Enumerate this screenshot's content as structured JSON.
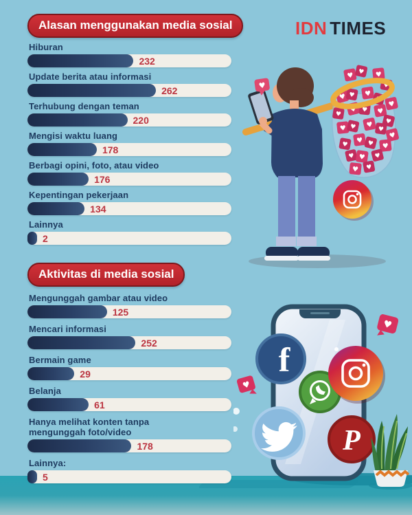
{
  "logo": {
    "idn": "IDN",
    "times": "TIMES"
  },
  "chart_data": [
    {
      "type": "bar",
      "orientation": "horizontal",
      "title": "Alasan menggunakan media sosial",
      "categories": [
        "Hiburan",
        "Update berita atau informasi",
        "Terhubung dengan teman",
        "Mengisi waktu luang",
        "Berbagi opini, foto, atau video",
        "Kepentingan pekerjaan",
        "Lainnya"
      ],
      "values": [
        232,
        262,
        220,
        178,
        176,
        134,
        2
      ],
      "fill_pct": [
        52,
        63,
        49,
        34,
        30,
        28,
        4.7
      ]
    },
    {
      "type": "bar",
      "orientation": "horizontal",
      "title": "Aktivitas di media sosial",
      "categories": [
        "Mengunggah gambar atau video",
        "Mencari informasi",
        "Bermain game",
        "Belanja",
        "Hanya melihat konten tanpa\nmengunggah foto/video",
        "Lainnya:"
      ],
      "values": [
        125,
        252,
        29,
        61,
        178,
        5
      ],
      "fill_pct": [
        39,
        53,
        23,
        30,
        51,
        4.7
      ]
    }
  ],
  "colors": {
    "background": "#8cc6da",
    "floor_teal": "#2aa3b5",
    "title_badge_red": "#c1272d",
    "bar_fill_navy": "#22365a",
    "bar_track": "#f2efe8",
    "value_red": "#bb3440",
    "label_navy": "#1d3a5f",
    "logo_red": "#e23b3f",
    "logo_black": "#1d2330"
  },
  "illustrations": {
    "top": {
      "name": "person-catching-likes-with-net",
      "icons": [
        "like-notification-icon",
        "smartphone-icon",
        "butterfly-net-icon",
        "instagram-icon"
      ]
    },
    "bottom": {
      "name": "smartphone-with-social-icons",
      "icons": [
        "facebook-icon",
        "whatsapp-icon",
        "instagram-icon",
        "twitter-icon",
        "pinterest-icon",
        "like-bubble-icon",
        "snake-plant"
      ]
    }
  }
}
